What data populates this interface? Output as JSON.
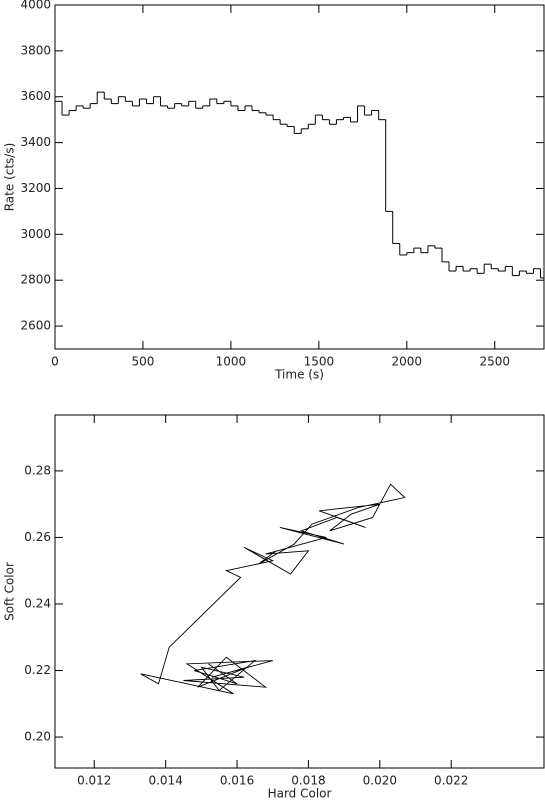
{
  "chart_data": [
    {
      "type": "line",
      "step": true,
      "xlabel": "Time (s)",
      "ylabel": "Rate (cts/s)",
      "color": "#000000",
      "x": [
        0,
        40,
        80,
        120,
        160,
        200,
        240,
        280,
        320,
        360,
        400,
        440,
        480,
        520,
        560,
        600,
        640,
        680,
        720,
        760,
        800,
        840,
        880,
        920,
        960,
        1000,
        1040,
        1080,
        1120,
        1160,
        1200,
        1240,
        1280,
        1320,
        1360,
        1400,
        1440,
        1480,
        1520,
        1560,
        1600,
        1640,
        1680,
        1720,
        1760,
        1800,
        1840,
        1880,
        1920,
        1960,
        2000,
        2040,
        2080,
        2120,
        2160,
        2200,
        2240,
        2280,
        2320,
        2360,
        2400,
        2440,
        2480,
        2520,
        2560,
        2600,
        2640,
        2680,
        2720,
        2760
      ],
      "values": [
        3580,
        3520,
        3540,
        3560,
        3550,
        3570,
        3620,
        3590,
        3570,
        3600,
        3580,
        3560,
        3590,
        3570,
        3600,
        3560,
        3550,
        3570,
        3560,
        3580,
        3550,
        3560,
        3590,
        3570,
        3580,
        3560,
        3540,
        3560,
        3540,
        3530,
        3520,
        3500,
        3480,
        3470,
        3440,
        3460,
        3480,
        3520,
        3500,
        3480,
        3500,
        3510,
        3490,
        3560,
        3520,
        3540,
        3500,
        3100,
        2960,
        2910,
        2920,
        2940,
        2920,
        2950,
        2940,
        2880,
        2840,
        2860,
        2840,
        2850,
        2830,
        2870,
        2850,
        2840,
        2860,
        2820,
        2840,
        2830,
        2850,
        2810
      ],
      "xlim": [
        0,
        2780
      ],
      "xticks": [
        0,
        500,
        1000,
        1500,
        2000,
        2500
      ],
      "ylim": [
        2500,
        4000
      ],
      "yticks": [
        2600,
        2800,
        3000,
        3200,
        3400,
        3600,
        3800,
        4000
      ]
    },
    {
      "type": "line",
      "step": false,
      "xlabel": "Hard Color",
      "ylabel": "Soft Color",
      "color": "#000000",
      "x": [
        0.0152,
        0.016,
        0.0148,
        0.0165,
        0.0155,
        0.015,
        0.0162,
        0.0145,
        0.0168,
        0.0157,
        0.0149,
        0.0163,
        0.0153,
        0.017,
        0.0146,
        0.0159,
        0.0133,
        0.0138,
        0.0141,
        0.0161,
        0.0157,
        0.017,
        0.0162,
        0.0175,
        0.018,
        0.0168,
        0.0185,
        0.0172,
        0.019,
        0.0178,
        0.0188,
        0.0196,
        0.0183,
        0.02,
        0.0192,
        0.0186,
        0.0198,
        0.0203,
        0.0207,
        0.0194,
        0.0181,
        0.0176,
        0.0166,
        0.0171
      ],
      "values": [
        0.222,
        0.216,
        0.22,
        0.223,
        0.214,
        0.221,
        0.218,
        0.217,
        0.215,
        0.224,
        0.215,
        0.221,
        0.218,
        0.223,
        0.222,
        0.213,
        0.219,
        0.216,
        0.227,
        0.248,
        0.25,
        0.253,
        0.257,
        0.249,
        0.256,
        0.255,
        0.26,
        0.263,
        0.258,
        0.262,
        0.266,
        0.263,
        0.268,
        0.27,
        0.267,
        0.262,
        0.266,
        0.276,
        0.272,
        0.269,
        0.264,
        0.258,
        0.252,
        0.256
      ],
      "xlim": [
        0.0109,
        0.0246
      ],
      "xticks": [
        0.012,
        0.014,
        0.016,
        0.018,
        {
          "value": 0.02,
          "label": "0.020"
        },
        0.022
      ],
      "ylim": [
        0.1907,
        0.2968
      ],
      "yticks": [
        {
          "value": 0.2,
          "label": "0.20"
        },
        0.22,
        0.24,
        0.26,
        0.28
      ]
    }
  ]
}
